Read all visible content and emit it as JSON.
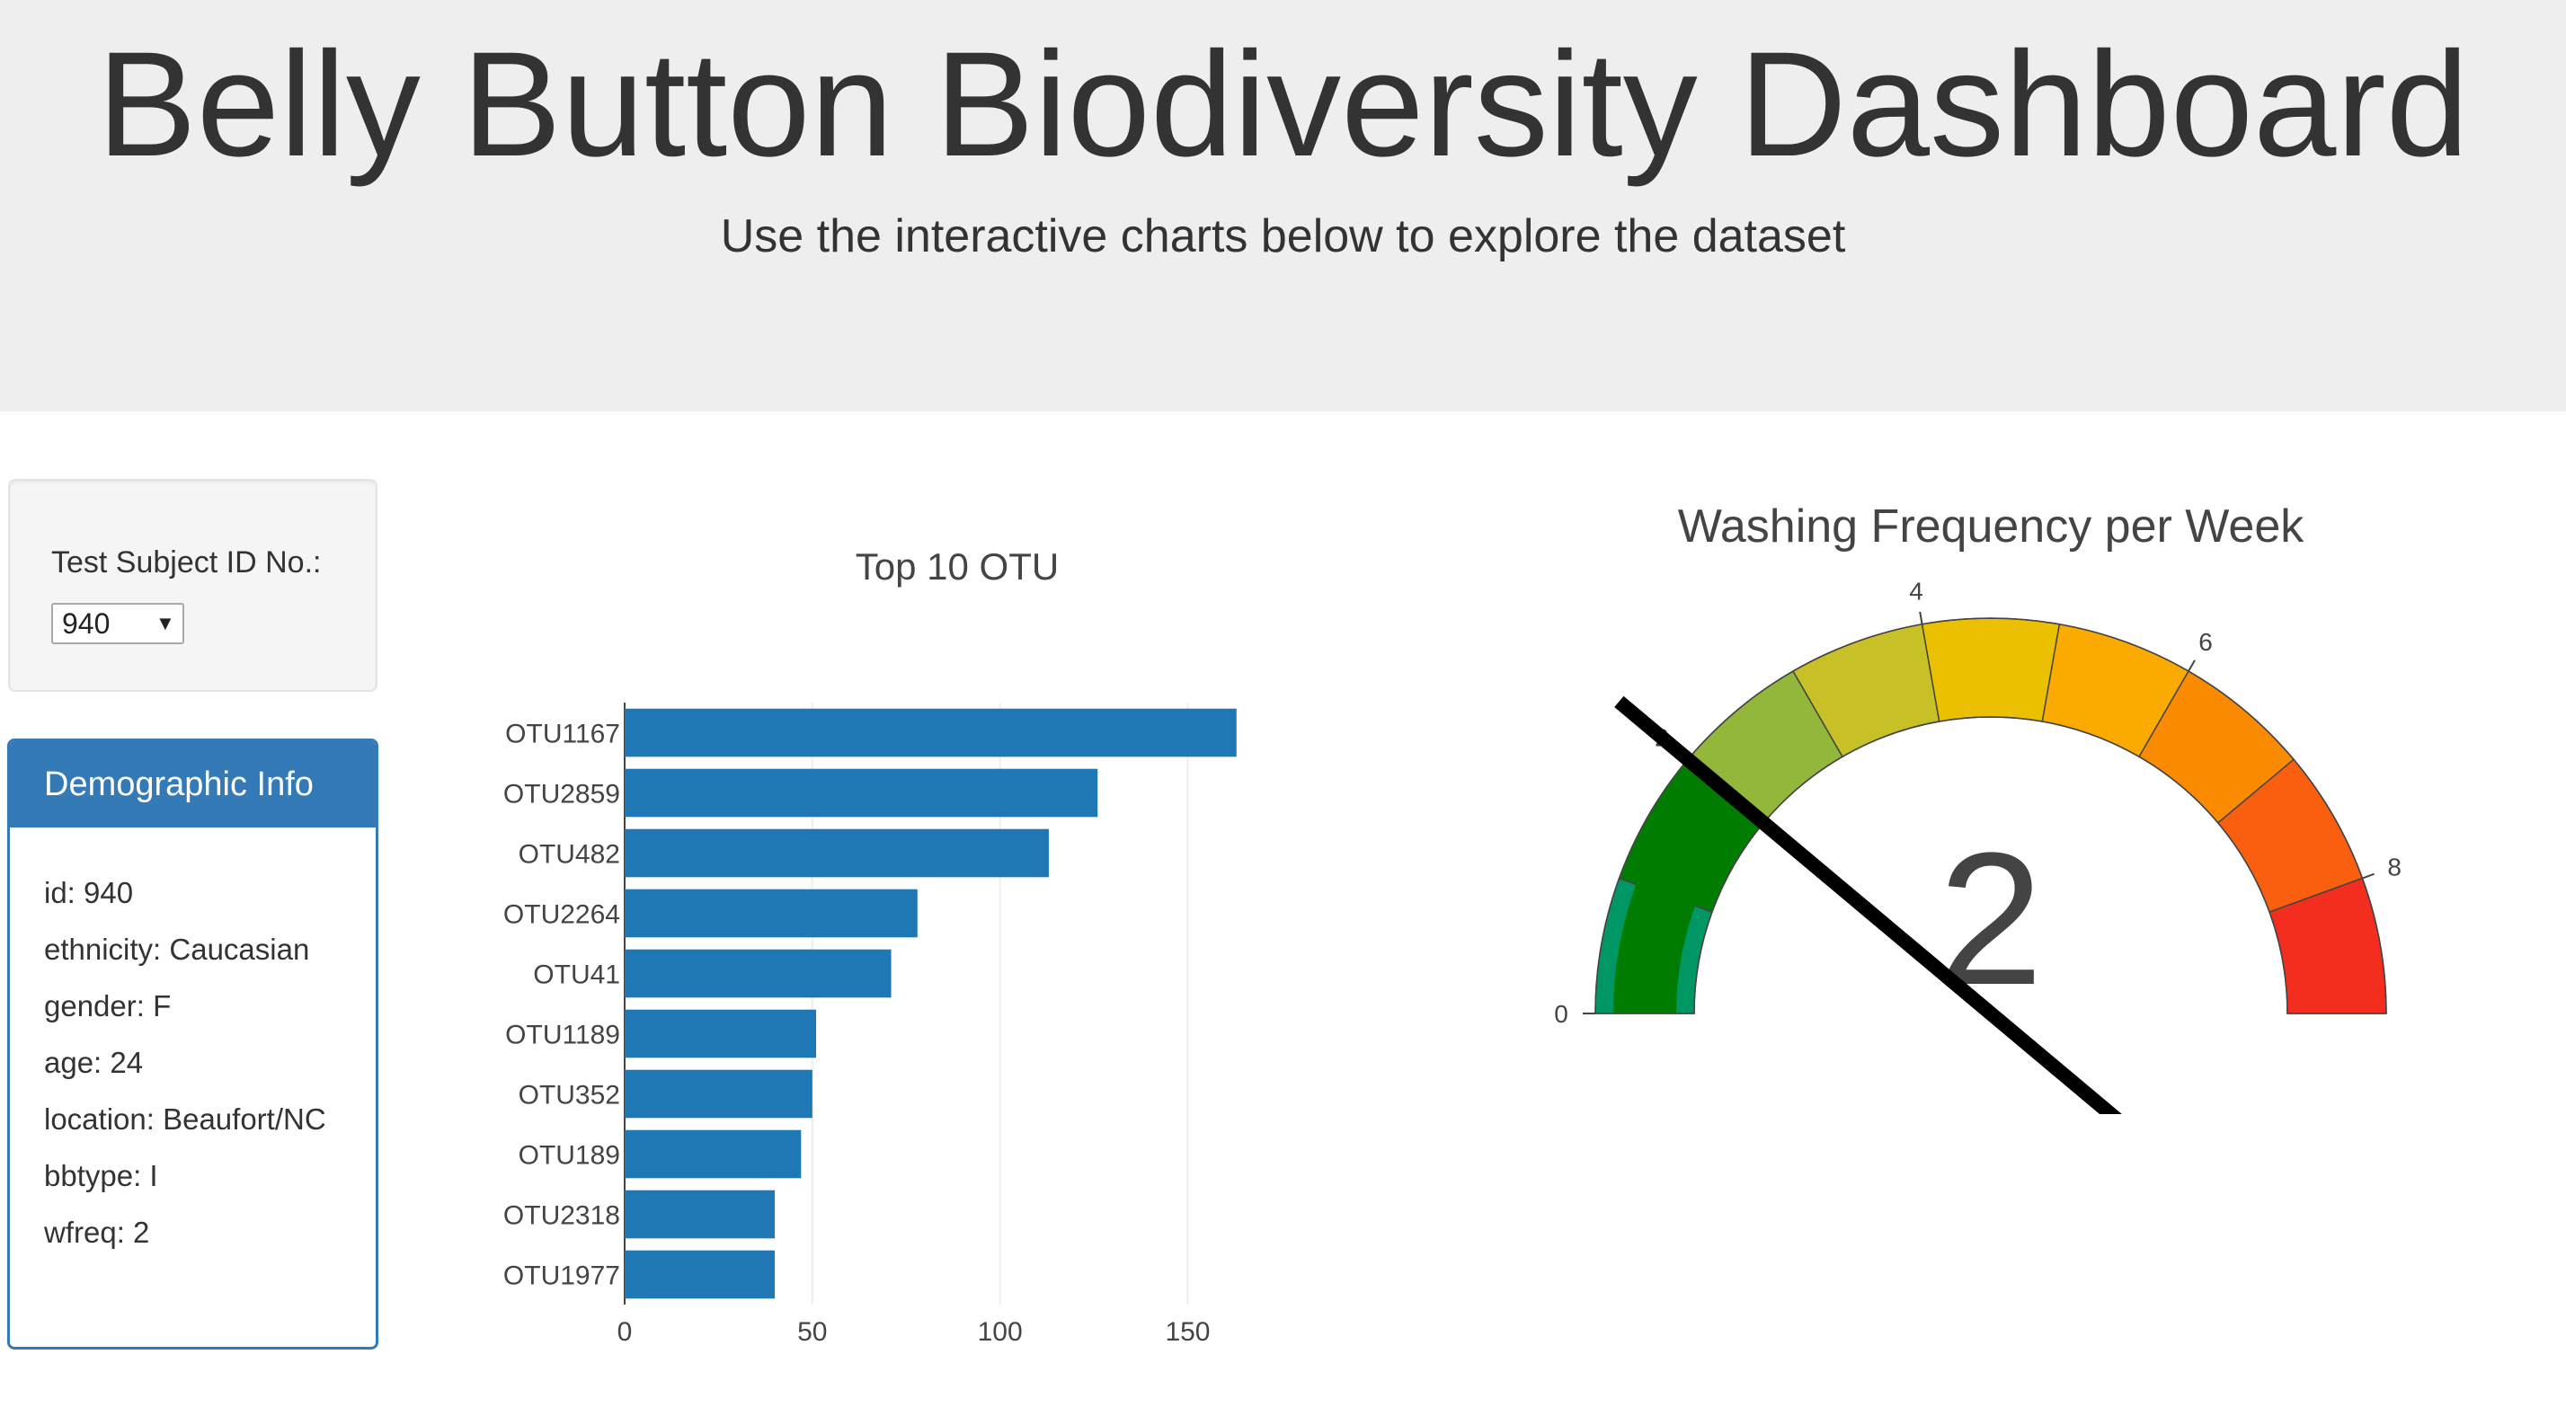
{
  "header": {
    "title": "Belly Button Biodiversity Dashboard",
    "subtitle": "Use the interactive charts below to explore the dataset"
  },
  "selector": {
    "label": "Test Subject ID No.:",
    "selected": "940"
  },
  "demographics": {
    "title": "Demographic Info",
    "rows": [
      "id: 940",
      "ethnicity: Caucasian",
      "gender: F",
      "age: 24",
      "location: Beaufort/NC",
      "bbtype: I",
      "wfreq: 2"
    ]
  },
  "colors": {
    "bar": "#1f77b4",
    "panel": "#337ab7",
    "needle": "#000000",
    "gauge_steps": [
      "#019765",
      "#007d00",
      "#92b73a",
      "#c7c026",
      "#ebc000",
      "#fbab00",
      "#fa8b00",
      "#fa5f0f",
      "#f42e1f"
    ]
  },
  "chart_data": [
    {
      "type": "bar",
      "orientation": "horizontal",
      "title": "Top 10 OTU",
      "categories": [
        "OTU1167",
        "OTU2859",
        "OTU482",
        "OTU2264",
        "OTU41",
        "OTU1189",
        "OTU352",
        "OTU189",
        "OTU2318",
        "OTU1977"
      ],
      "values": [
        163,
        126,
        113,
        78,
        71,
        51,
        50,
        47,
        40,
        40
      ],
      "xticks": [
        0,
        50,
        100,
        150
      ],
      "xlim": [
        0,
        170
      ],
      "grid": true
    },
    {
      "type": "gauge",
      "title": "Washing Frequency per Week",
      "value": 2,
      "range": [
        0,
        9
      ],
      "ticks": [
        0,
        2,
        4,
        6,
        8
      ],
      "steps": [
        [
          0,
          1
        ],
        [
          1,
          2
        ],
        [
          2,
          3
        ],
        [
          3,
          4
        ],
        [
          4,
          5
        ],
        [
          5,
          6
        ],
        [
          6,
          7
        ],
        [
          7,
          8
        ],
        [
          8,
          9
        ]
      ]
    }
  ]
}
